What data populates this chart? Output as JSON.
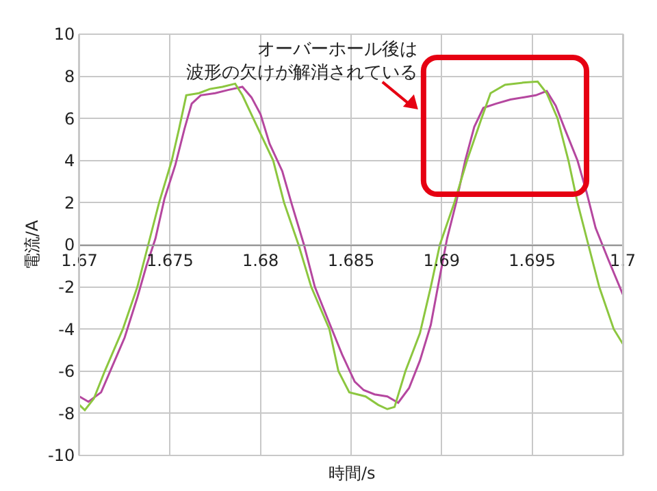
{
  "chart_data": {
    "type": "line",
    "xlabel": "時間/s",
    "ylabel": "電流/A",
    "annotations": [
      "オーバーホール後は",
      "波形の欠けが解消されている"
    ],
    "xlim": [
      1.67,
      1.7
    ],
    "xticks": [
      1.67,
      1.675,
      1.68,
      1.685,
      1.69,
      1.695,
      1.7
    ],
    "ylim": [
      -10,
      10
    ],
    "yticks": [
      -10,
      -8,
      -6,
      -4,
      -2,
      0,
      2,
      4,
      6,
      8,
      10
    ],
    "grid": true,
    "line_style": "solid",
    "marker": "none",
    "series": [
      {
        "color": "#b5479f",
        "x": [
          1.67,
          1.6705,
          1.6712,
          1.6718,
          1.6725,
          1.6732,
          1.6737,
          1.6742,
          1.6747,
          1.6753,
          1.6758,
          1.6762,
          1.6767,
          1.6775,
          1.6782,
          1.679,
          1.6795,
          1.68,
          1.6805,
          1.6812,
          1.6817,
          1.6824,
          1.683,
          1.6837,
          1.6845,
          1.6852,
          1.6857,
          1.6863,
          1.687,
          1.6876,
          1.6882,
          1.6888,
          1.6894,
          1.6899,
          1.6903,
          1.6908,
          1.6913,
          1.6918,
          1.6923,
          1.693,
          1.6938,
          1.6945,
          1.6952,
          1.6958,
          1.6963,
          1.6968,
          1.6975,
          1.698,
          1.6985,
          1.6992,
          1.7
        ],
        "values": [
          -7.2,
          -7.45,
          -7.0,
          -5.8,
          -4.4,
          -2.5,
          -1.0,
          0.3,
          2.2,
          3.8,
          5.5,
          6.7,
          7.1,
          7.2,
          7.35,
          7.5,
          7.0,
          6.2,
          4.8,
          3.5,
          2.0,
          0,
          -2.0,
          -3.5,
          -5.2,
          -6.5,
          -6.9,
          -7.1,
          -7.2,
          -7.5,
          -6.8,
          -5.5,
          -3.8,
          -1.5,
          0.3,
          2.0,
          4.0,
          5.6,
          6.5,
          6.7,
          6.9,
          7.0,
          7.1,
          7.3,
          6.6,
          5.5,
          4.0,
          2.5,
          0.8,
          -0.7,
          -2.35
        ]
      },
      {
        "color": "#8cc63f",
        "x": [
          1.67,
          1.6703,
          1.6708,
          1.6714,
          1.6724,
          1.6732,
          1.6738,
          1.6744,
          1.6751,
          1.6755,
          1.6759,
          1.6766,
          1.6772,
          1.6779,
          1.6786,
          1.679,
          1.6796,
          1.6807,
          1.6813,
          1.6821,
          1.6828,
          1.6838,
          1.6843,
          1.6849,
          1.6858,
          1.6865,
          1.687,
          1.6874,
          1.688,
          1.6888,
          1.6894,
          1.6899,
          1.6907,
          1.6914,
          1.6922,
          1.6927,
          1.6935,
          1.6945,
          1.6953,
          1.6958,
          1.6964,
          1.697,
          1.6975,
          1.6981,
          1.6987,
          1.6995,
          1.7
        ],
        "values": [
          -7.6,
          -7.85,
          -7.3,
          -6.0,
          -4.0,
          -2.0,
          0,
          2.0,
          4.0,
          5.5,
          7.1,
          7.2,
          7.4,
          7.5,
          7.65,
          7.1,
          6.0,
          4.0,
          2.0,
          0,
          -2.0,
          -4.0,
          -6.0,
          -7.0,
          -7.2,
          -7.6,
          -7.8,
          -7.7,
          -6.0,
          -4.2,
          -2.0,
          0,
          2.0,
          4.0,
          6.0,
          7.2,
          7.6,
          7.7,
          7.75,
          7.2,
          6.0,
          4.0,
          2.0,
          0,
          -2.0,
          -4.0,
          -4.7
        ]
      }
    ]
  }
}
